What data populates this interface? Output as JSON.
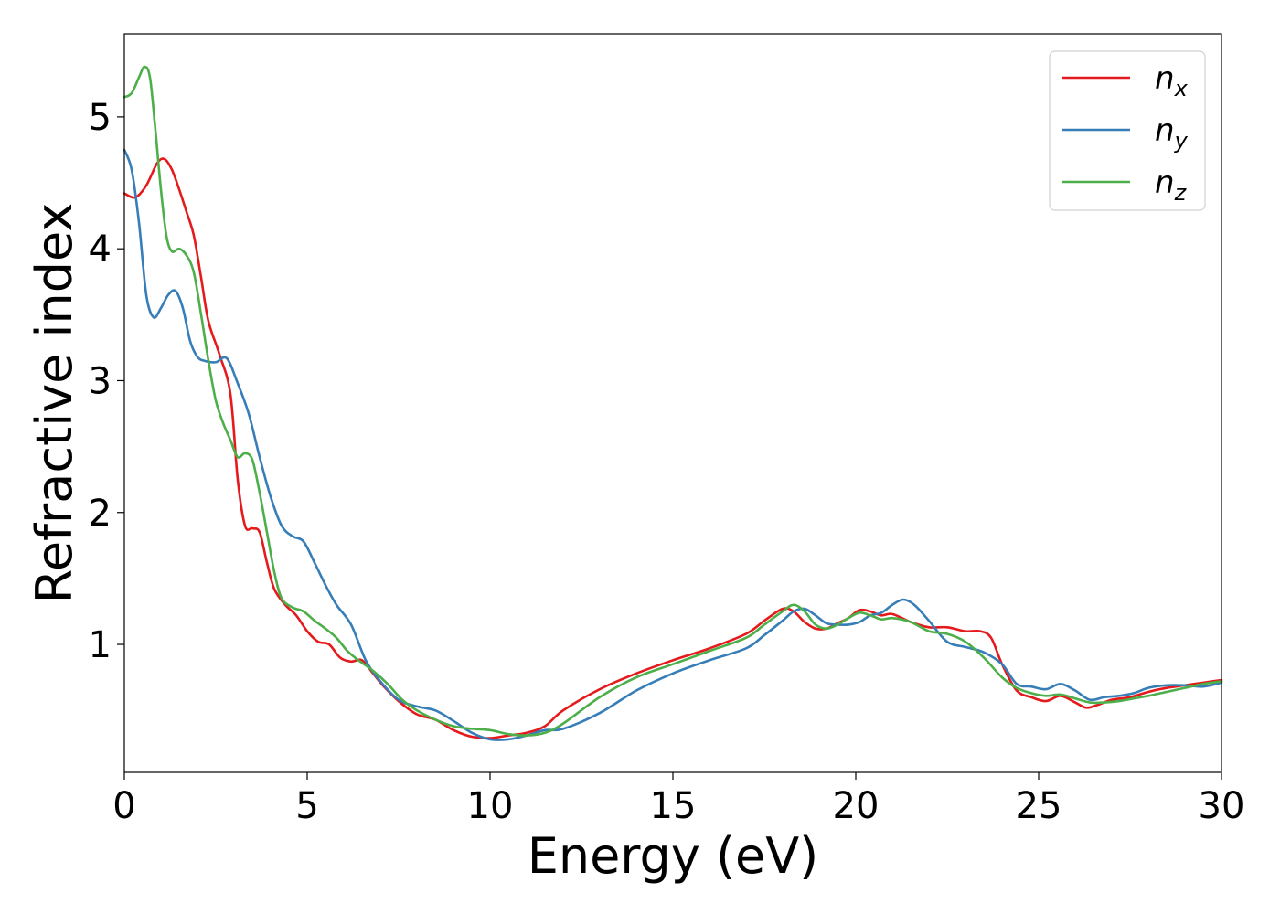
{
  "chart_data": {
    "type": "line",
    "xlabel": "Energy (eV)",
    "ylabel": "Refractive index",
    "xlim": [
      0,
      30
    ],
    "ylim": [
      0.03,
      5.63
    ],
    "xticks": [
      0,
      5,
      10,
      15,
      20,
      25,
      30
    ],
    "yticks": [
      1,
      2,
      3,
      4,
      5
    ],
    "grid": false,
    "legend_position": "top-right",
    "series": [
      {
        "name": "n",
        "subscript": "x",
        "color": "#e41a1c",
        "x": [
          0,
          0.3,
          0.6,
          0.9,
          1.1,
          1.3,
          1.5,
          1.7,
          1.9,
          2.1,
          2.3,
          2.6,
          2.9,
          3.1,
          3.3,
          3.5,
          3.7,
          3.9,
          4.1,
          4.4,
          4.7,
          5.0,
          5.3,
          5.6,
          5.9,
          6.2,
          6.5,
          6.8,
          7.1,
          7.5,
          8.0,
          8.5,
          9.0,
          9.5,
          10.0,
          10.5,
          11.0,
          11.5,
          12.0,
          13.0,
          14.0,
          15.0,
          16.0,
          17.0,
          17.5,
          18.0,
          18.3,
          18.6,
          18.9,
          19.2,
          19.5,
          19.8,
          20.1,
          20.4,
          20.7,
          21.0,
          21.5,
          22.0,
          22.5,
          23.0,
          23.4,
          23.7,
          24.0,
          24.4,
          24.8,
          25.2,
          25.6,
          26.0,
          26.3,
          26.6,
          27.0,
          27.5,
          28.0,
          28.5,
          29.0,
          29.5,
          30.0
        ],
        "values": [
          4.42,
          4.39,
          4.48,
          4.65,
          4.68,
          4.6,
          4.45,
          4.28,
          4.1,
          3.78,
          3.45,
          3.2,
          2.9,
          2.25,
          1.9,
          1.88,
          1.85,
          1.62,
          1.42,
          1.3,
          1.22,
          1.1,
          1.02,
          1.0,
          0.9,
          0.87,
          0.88,
          0.78,
          0.68,
          0.57,
          0.47,
          0.43,
          0.35,
          0.3,
          0.29,
          0.31,
          0.33,
          0.38,
          0.5,
          0.66,
          0.78,
          0.88,
          0.97,
          1.08,
          1.18,
          1.27,
          1.25,
          1.17,
          1.12,
          1.12,
          1.16,
          1.2,
          1.26,
          1.25,
          1.22,
          1.23,
          1.17,
          1.13,
          1.13,
          1.1,
          1.1,
          1.05,
          0.85,
          0.65,
          0.6,
          0.57,
          0.61,
          0.56,
          0.52,
          0.54,
          0.58,
          0.6,
          0.64,
          0.67,
          0.69,
          0.71,
          0.73
        ]
      },
      {
        "name": "n",
        "subscript": "y",
        "color": "#377eb8",
        "x": [
          0,
          0.2,
          0.4,
          0.6,
          0.8,
          1.0,
          1.2,
          1.4,
          1.6,
          1.8,
          2.0,
          2.2,
          2.5,
          2.8,
          3.1,
          3.4,
          3.7,
          4.0,
          4.3,
          4.6,
          4.9,
          5.2,
          5.5,
          5.8,
          6.2,
          6.6,
          7.0,
          7.5,
          8.0,
          8.5,
          9.0,
          9.5,
          10.0,
          10.5,
          11.0,
          11.5,
          12.0,
          13.0,
          14.0,
          15.0,
          16.0,
          17.0,
          17.5,
          18.0,
          18.3,
          18.6,
          18.9,
          19.2,
          19.5,
          19.8,
          20.1,
          20.4,
          20.7,
          21.0,
          21.3,
          21.6,
          22.0,
          22.5,
          23.0,
          23.5,
          24.0,
          24.4,
          24.8,
          25.2,
          25.6,
          26.0,
          26.4,
          26.8,
          27.2,
          27.6,
          28.0,
          28.5,
          29.0,
          29.5,
          30.0
        ],
        "values": [
          4.75,
          4.6,
          4.2,
          3.65,
          3.48,
          3.55,
          3.65,
          3.68,
          3.55,
          3.3,
          3.18,
          3.15,
          3.14,
          3.17,
          2.98,
          2.75,
          2.42,
          2.12,
          1.9,
          1.82,
          1.78,
          1.62,
          1.45,
          1.3,
          1.15,
          0.88,
          0.72,
          0.58,
          0.53,
          0.5,
          0.42,
          0.33,
          0.28,
          0.28,
          0.31,
          0.35,
          0.36,
          0.48,
          0.65,
          0.78,
          0.88,
          0.97,
          1.07,
          1.18,
          1.25,
          1.27,
          1.22,
          1.16,
          1.15,
          1.15,
          1.17,
          1.22,
          1.24,
          1.3,
          1.34,
          1.3,
          1.18,
          1.02,
          0.98,
          0.94,
          0.85,
          0.7,
          0.68,
          0.66,
          0.7,
          0.65,
          0.58,
          0.6,
          0.61,
          0.63,
          0.67,
          0.69,
          0.69,
          0.68,
          0.71
        ]
      },
      {
        "name": "n",
        "subscript": "z",
        "color": "#4daf4a",
        "x": [
          0,
          0.2,
          0.4,
          0.55,
          0.7,
          0.85,
          1.0,
          1.15,
          1.3,
          1.5,
          1.7,
          1.9,
          2.1,
          2.3,
          2.5,
          2.7,
          2.9,
          3.1,
          3.3,
          3.5,
          3.7,
          3.9,
          4.1,
          4.3,
          4.6,
          4.9,
          5.2,
          5.5,
          5.8,
          6.1,
          6.4,
          6.8,
          7.2,
          7.6,
          8.0,
          8.5,
          9.0,
          9.5,
          10.0,
          10.5,
          11.0,
          11.5,
          12.0,
          13.0,
          14.0,
          15.0,
          16.0,
          17.0,
          17.5,
          18.0,
          18.3,
          18.6,
          18.9,
          19.2,
          19.5,
          19.8,
          20.1,
          20.4,
          20.7,
          21.0,
          21.5,
          22.0,
          22.5,
          23.0,
          23.5,
          24.0,
          24.4,
          24.8,
          25.2,
          25.6,
          26.0,
          26.4,
          26.8,
          27.2,
          27.6,
          28.0,
          28.5,
          29.0,
          29.5,
          30.0
        ],
        "values": [
          5.15,
          5.18,
          5.3,
          5.38,
          5.3,
          4.9,
          4.45,
          4.1,
          3.98,
          4.0,
          3.95,
          3.82,
          3.5,
          3.15,
          2.85,
          2.68,
          2.55,
          2.42,
          2.45,
          2.4,
          2.15,
          1.85,
          1.55,
          1.35,
          1.28,
          1.25,
          1.18,
          1.12,
          1.05,
          0.95,
          0.88,
          0.8,
          0.7,
          0.58,
          0.5,
          0.43,
          0.38,
          0.36,
          0.35,
          0.32,
          0.31,
          0.33,
          0.4,
          0.6,
          0.75,
          0.85,
          0.95,
          1.05,
          1.15,
          1.25,
          1.3,
          1.25,
          1.15,
          1.12,
          1.15,
          1.2,
          1.24,
          1.22,
          1.19,
          1.2,
          1.17,
          1.1,
          1.08,
          1.02,
          0.9,
          0.75,
          0.67,
          0.63,
          0.61,
          0.62,
          0.59,
          0.56,
          0.56,
          0.57,
          0.59,
          0.61,
          0.64,
          0.67,
          0.7,
          0.72
        ]
      }
    ]
  }
}
